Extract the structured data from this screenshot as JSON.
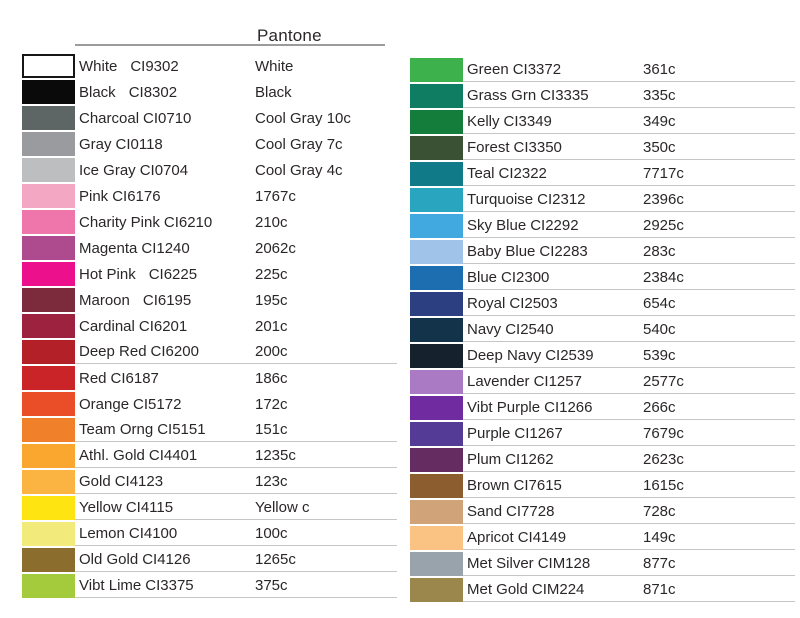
{
  "header": {
    "pantone_label": "Pantone"
  },
  "colors_meta": {
    "text_color": "#2b2728",
    "row_rule_color": "#c6c6c6",
    "header_rule_color": "#9b9b9b"
  },
  "columns": [
    {
      "side": "left",
      "rows": [
        {
          "name": "White",
          "code": "CI9302",
          "pantone": "White",
          "color": "#ffffff",
          "border": true,
          "gap": true,
          "rule": false
        },
        {
          "name": "Black",
          "code": "CI8302",
          "pantone": "Black",
          "color": "#0a0a0a",
          "border": false,
          "gap": true,
          "rule": false
        },
        {
          "name": "Charcoal",
          "code": "CI0710",
          "pantone": "Cool Gray 10c",
          "color": "#5e6665",
          "border": false,
          "gap": false,
          "rule": false
        },
        {
          "name": "Gray",
          "code": "CI0118",
          "pantone": "Cool Gray 7c",
          "color": "#9a9b9e",
          "border": false,
          "gap": false,
          "rule": false
        },
        {
          "name": "Ice Gray",
          "code": "CI0704",
          "pantone": "Cool Gray 4c",
          "color": "#bdbec0",
          "border": false,
          "gap": false,
          "rule": false
        },
        {
          "name": "Pink",
          "code": "CI6176",
          "pantone": "1767c",
          "color": "#f4a7c3",
          "border": false,
          "gap": false,
          "rule": false
        },
        {
          "name": "Charity Pink",
          "code": "CI6210",
          "pantone": "210c",
          "color": "#ee76ab",
          "border": false,
          "gap": false,
          "rule": false
        },
        {
          "name": "Magenta",
          "code": "CI1240",
          "pantone": "2062c",
          "color": "#ae4b8e",
          "border": false,
          "gap": false,
          "rule": false
        },
        {
          "name": "Hot Pink",
          "code": "CI6225",
          "pantone": "225c",
          "color": "#ec108d",
          "border": false,
          "gap": true,
          "rule": false
        },
        {
          "name": "Maroon",
          "code": "CI6195",
          "pantone": "195c",
          "color": "#7c2b3d",
          "border": false,
          "gap": true,
          "rule": false
        },
        {
          "name": "Cardinal",
          "code": "CI6201",
          "pantone": "201c",
          "color": "#9d2240",
          "border": false,
          "gap": false,
          "rule": false
        },
        {
          "name": "Deep Red",
          "code": "CI6200",
          "pantone": "200c",
          "color": "#b32028",
          "border": false,
          "gap": false,
          "rule": true
        },
        {
          "name": "Red",
          "code": "CI6187",
          "pantone": "186c",
          "color": "#ca2328",
          "border": false,
          "gap": false,
          "rule": false
        },
        {
          "name": "Orange",
          "code": "CI5172",
          "pantone": "172c",
          "color": "#e94e28",
          "border": false,
          "gap": false,
          "rule": false
        },
        {
          "name": "Team Orng",
          "code": "CI5151",
          "pantone": "151c",
          "color": "#f0802a",
          "border": false,
          "gap": false,
          "rule": true
        },
        {
          "name": "Athl. Gold",
          "code": "CI4401",
          "pantone": "1235c",
          "color": "#f9a72e",
          "border": false,
          "gap": false,
          "rule": true
        },
        {
          "name": "Gold",
          "code": "CI4123",
          "pantone": "123c",
          "color": "#fbb342",
          "border": false,
          "gap": false,
          "rule": true
        },
        {
          "name": "Yellow",
          "code": "CI4115",
          "pantone": "Yellow c",
          "color": "#fee410",
          "border": false,
          "gap": false,
          "rule": true
        },
        {
          "name": "Lemon",
          "code": "CI4100",
          "pantone": "100c",
          "color": "#f2eb7c",
          "border": false,
          "gap": false,
          "rule": true
        },
        {
          "name": "Old Gold",
          "code": "CI4126",
          "pantone": "1265c",
          "color": "#8b6e2e",
          "border": false,
          "gap": false,
          "rule": true
        },
        {
          "name": "Vibt Lime",
          "code": "CI3375",
          "pantone": "375c",
          "color": "#a4cb3b",
          "border": false,
          "gap": false,
          "rule": true
        }
      ]
    },
    {
      "side": "right",
      "rows": [
        {
          "name": "Green",
          "code": "CI3372",
          "pantone": "361c",
          "color": "#3cb14c",
          "border": false,
          "gap": false,
          "rule": true
        },
        {
          "name": "Grass Grn",
          "code": "CI3335",
          "pantone": "335c",
          "color": "#0f7d61",
          "border": false,
          "gap": false,
          "rule": true
        },
        {
          "name": "Kelly",
          "code": "CI3349",
          "pantone": "349c",
          "color": "#157d3b",
          "border": false,
          "gap": false,
          "rule": true
        },
        {
          "name": "Forest",
          "code": "CI3350",
          "pantone": "350c",
          "color": "#3a5233",
          "border": false,
          "gap": false,
          "rule": true
        },
        {
          "name": "Teal",
          "code": "CI2322",
          "pantone": "7717c",
          "color": "#107a88",
          "border": false,
          "gap": false,
          "rule": true
        },
        {
          "name": "Turquoise",
          "code": "CI2312",
          "pantone": "2396c",
          "color": "#29a5bf",
          "border": false,
          "gap": false,
          "rule": true
        },
        {
          "name": "Sky Blue",
          "code": "CI2292",
          "pantone": "2925c",
          "color": "#42a9e0",
          "border": false,
          "gap": false,
          "rule": true
        },
        {
          "name": "Baby Blue",
          "code": "CI2283",
          "pantone": "283c",
          "color": "#a0c4e9",
          "border": false,
          "gap": false,
          "rule": true
        },
        {
          "name": "Blue",
          "code": "CI2300",
          "pantone": "2384c",
          "color": "#1d6db1",
          "border": false,
          "gap": false,
          "rule": true
        },
        {
          "name": "Royal",
          "code": "CI2503",
          "pantone": "654c",
          "color": "#2c3f80",
          "border": false,
          "gap": false,
          "rule": true
        },
        {
          "name": "Navy",
          "code": "CI2540",
          "pantone": "540c",
          "color": "#123349",
          "border": false,
          "gap": false,
          "rule": true
        },
        {
          "name": "Deep Navy",
          "code": "CI2539",
          "pantone": "539c",
          "color": "#16212e",
          "border": false,
          "gap": false,
          "rule": true
        },
        {
          "name": "Lavender",
          "code": "CI1257",
          "pantone": "2577c",
          "color": "#aa7bc4",
          "border": false,
          "gap": false,
          "rule": true
        },
        {
          "name": "Vibt Purple",
          "code": "CI1266",
          "pantone": "266c",
          "color": "#702ba1",
          "border": false,
          "gap": false,
          "rule": true
        },
        {
          "name": "Purple",
          "code": "CI1267",
          "pantone": "7679c",
          "color": "#543b96",
          "border": false,
          "gap": false,
          "rule": true
        },
        {
          "name": "Plum",
          "code": "CI1262",
          "pantone": "2623c",
          "color": "#652c62",
          "border": false,
          "gap": false,
          "rule": true
        },
        {
          "name": "Brown",
          "code": "CI7615",
          "pantone": "1615c",
          "color": "#8b5d2f",
          "border": false,
          "gap": false,
          "rule": true
        },
        {
          "name": "Sand",
          "code": "CI7728",
          "pantone": "728c",
          "color": "#d0a378",
          "border": false,
          "gap": false,
          "rule": true
        },
        {
          "name": "Apricot",
          "code": "CI4149",
          "pantone": "149c",
          "color": "#fac283",
          "border": false,
          "gap": false,
          "rule": true
        },
        {
          "name": "Met Silver",
          "code": "CIM128",
          "pantone": "877c",
          "color": "#99a3ac",
          "border": false,
          "gap": false,
          "rule": true
        },
        {
          "name": "Met Gold",
          "code": "CIM224",
          "pantone": "871c",
          "color": "#9b874c",
          "border": false,
          "gap": false,
          "rule": true
        }
      ]
    }
  ]
}
